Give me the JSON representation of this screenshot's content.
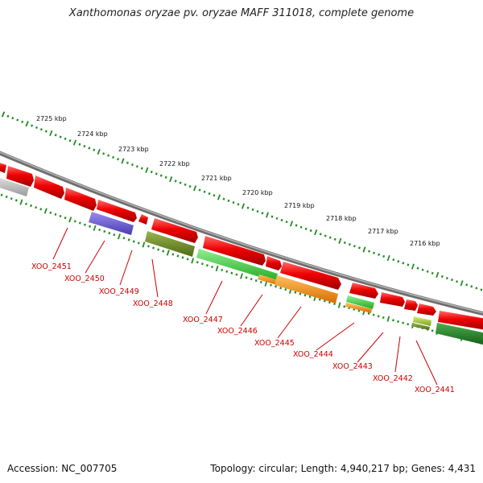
{
  "title": "Xanthomonas oryzae pv. oryzae MAFF 311018, complete genome",
  "footer": {
    "accession": "Accession: NC_007705",
    "summary": "Topology: circular; Length: 4,940,217 bp; Genes: 4,431"
  },
  "ruler": {
    "tick_color": "#228b22",
    "labels": [
      "2725 kbp",
      "2724 kbp",
      "2723 kbp",
      "2722 kbp",
      "2721 kbp",
      "2720 kbp",
      "2719 kbp",
      "2718 kbp",
      "2717 kbp",
      "2716 kbp"
    ]
  },
  "gene_labels": [
    "XOO_2451",
    "XOO_2450",
    "XOO_2449",
    "XOO_2448",
    "XOO_2447",
    "XOO_2446",
    "XOO_2445",
    "XOO_2444",
    "XOO_2443",
    "XOO_2442",
    "XOO_2441"
  ],
  "colors": {
    "backbone": "#8c8c8c",
    "forward_gene": "#ee0000",
    "label": "#cc0000",
    "gray_gene": "#bdbdbd",
    "purple_gene": "#6a5acd",
    "olive_gene": "#6b8e23",
    "light_green_gene": "#32cd32",
    "orange_gene": "#ff8c00",
    "yellow_green_gene": "#9acd32",
    "dark_green_gene": "#228b22"
  }
}
